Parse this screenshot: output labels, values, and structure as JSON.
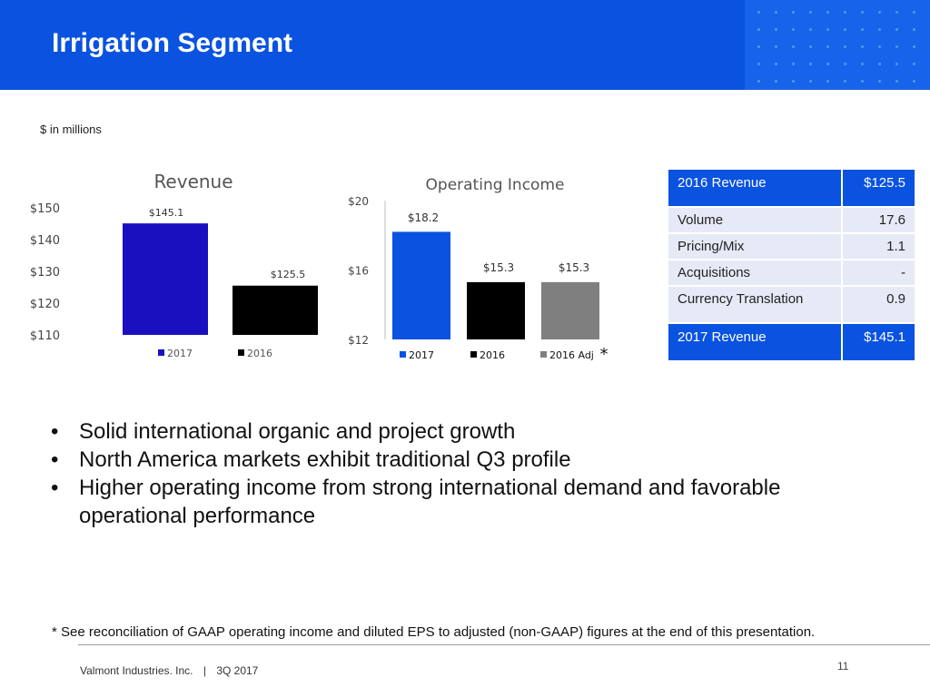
{
  "slide": {
    "title": "Irrigation Segment",
    "units": "$ in millions",
    "footnote": "* See reconciliation of GAAP operating income and diluted EPS to adjusted (non-GAAP) figures at the end of this presentation.",
    "footer_company": "Valmont Industries. Inc.",
    "footer_separator": "|",
    "footer_period": "3Q 2017",
    "page_number": "11"
  },
  "chart_data": [
    {
      "type": "bar",
      "title": "Revenue",
      "categories": [
        "2017",
        "2016"
      ],
      "values": [
        145.1,
        125.5
      ],
      "data_labels": [
        "$145.1",
        "$125.5"
      ],
      "colors": [
        "#1a10c0",
        "#000000"
      ],
      "ylim": [
        110,
        150
      ],
      "yticks": [
        150,
        140,
        130,
        120,
        110
      ],
      "ytick_labels": [
        "$150",
        "$140",
        "$130",
        "$120",
        "$110"
      ],
      "legend": [
        "2017",
        "2016"
      ],
      "legend_position": "bottom"
    },
    {
      "type": "bar",
      "title": "Operating Income",
      "categories": [
        "2017",
        "2016",
        "2016 Adj"
      ],
      "values": [
        18.2,
        15.3,
        15.3
      ],
      "data_labels": [
        "$18.2",
        "$15.3",
        "$15.3"
      ],
      "colors": [
        "#0a52e0",
        "#000000",
        "#7f7f7f"
      ],
      "ylim": [
        12,
        20
      ],
      "yticks": [
        20,
        16,
        12
      ],
      "ytick_labels": [
        "$20",
        "$16",
        "$12"
      ],
      "legend": [
        "2017",
        "2016",
        "2016 Adj"
      ],
      "legend_position": "bottom",
      "legend_note": "*"
    }
  ],
  "revenue_bridge": {
    "header": {
      "label": "2016 Revenue",
      "value": "$125.5"
    },
    "items": [
      {
        "label": "Volume",
        "value": "17.6"
      },
      {
        "label": "Pricing/Mix",
        "value": "1.1"
      },
      {
        "label": "Acquisitions",
        "value": "-"
      },
      {
        "label": "Currency Translation",
        "value": "0.9"
      }
    ],
    "footer": {
      "label": "2017 Revenue",
      "value": "$145.1"
    }
  },
  "bullets": [
    "Solid international organic and project growth",
    "North America markets exhibit traditional Q3 profile",
    "Higher operating income from strong international demand and favorable operational performance"
  ],
  "colors": {
    "header_blue": "#0a52e0",
    "table_row": "#e6eaf7"
  }
}
